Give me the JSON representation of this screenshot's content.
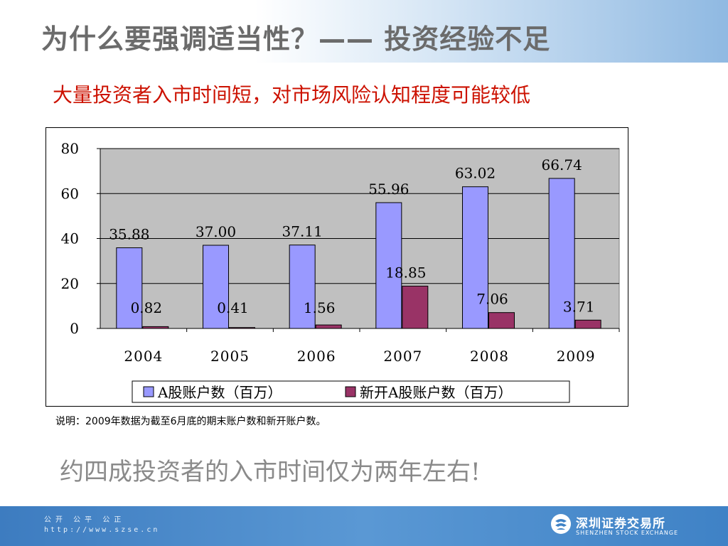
{
  "slide": {
    "title": "为什么要强调适当性？——  投资经验不足",
    "subtitle": "大量投资者入市时间短，对市场风险认知程度可能较低",
    "note": "说明：2009年数据为截至6月底的期末账户数和新开账户数。",
    "conclusion": "约四成投资者的入市时间仅为两年左右!"
  },
  "footer": {
    "motto": "公开 公平 公正",
    "url": "http://www.szse.cn",
    "logo_cn": "深圳证券交易所",
    "logo_en": "SHENZHEN STOCK EXCHANGE",
    "logo_icon": "szse-logo-icon"
  },
  "colors": {
    "series_a": "#9999ff",
    "series_b": "#993366",
    "plot_bg": "#c0c0c0",
    "subtitle": "#cc1100",
    "footer_bg": "#4a8bca"
  },
  "chart_data": {
    "type": "bar",
    "categories": [
      "2004",
      "2005",
      "2006",
      "2007",
      "2008",
      "2009"
    ],
    "series": [
      {
        "name": "A股账户数（百万）",
        "values": [
          35.88,
          37.0,
          37.11,
          55.96,
          63.02,
          66.74
        ],
        "labels": [
          "35.88",
          "37.00",
          "37.11",
          "55.96",
          "63.02",
          "66.74"
        ]
      },
      {
        "name": "新开A股账户数（百万）",
        "values": [
          0.82,
          0.41,
          1.56,
          18.85,
          7.06,
          3.71
        ],
        "labels": [
          "0.82",
          "0.41",
          "1.56",
          "18.85",
          "7.06",
          "3.71"
        ]
      }
    ],
    "yticks": [
      "0",
      "20",
      "40",
      "60",
      "80"
    ],
    "ylim": [
      0,
      80
    ],
    "grid": true,
    "legend": "bottom",
    "xlabel": "",
    "ylabel": ""
  }
}
